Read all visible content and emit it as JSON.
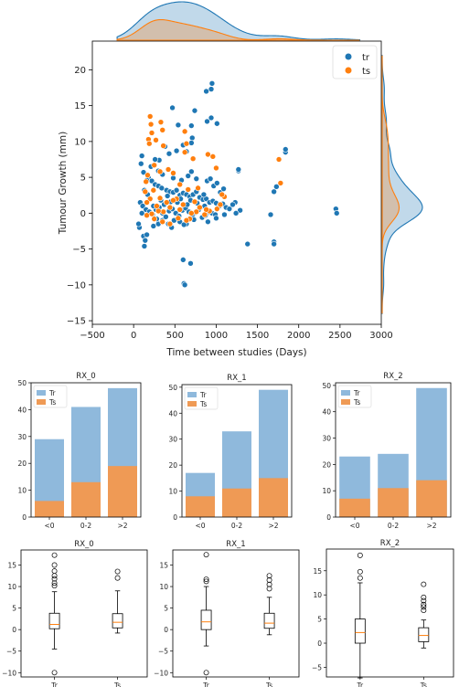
{
  "colors": {
    "tr": "#1f77b4",
    "ts": "#ff7f0e",
    "tr_bar": "#8fb9dc",
    "ts_bar": "#ef9a55",
    "tr_kde": "#b8d0e8",
    "ts_kde": "#d9b28f"
  },
  "chart_data": [
    {
      "type": "scatter",
      "xlabel": "Time between studies (Days)",
      "ylabel": "Tumour Growth (mm)",
      "xlim": [
        -500,
        3000
      ],
      "ylim": [
        -15.5,
        24
      ],
      "xticks": [
        -500,
        0,
        500,
        1000,
        1500,
        2000,
        2500,
        3000
      ],
      "yticks": [
        -15,
        -10,
        -5,
        0,
        5,
        10,
        15,
        20
      ],
      "legend": {
        "position": "top-right"
      },
      "series": [
        {
          "name": "tr",
          "points": [
            [
              120,
              -3.2
            ],
            [
              130,
              -4.6
            ],
            [
              140,
              -3.8
            ],
            [
              160,
              -3.0
            ],
            [
              70,
              -2.0
            ],
            [
              240,
              -1.8
            ],
            [
              300,
              -1.5
            ],
            [
              350,
              -1.0
            ],
            [
              420,
              -1.5
            ],
            [
              460,
              -2.0
            ],
            [
              560,
              -1.2
            ],
            [
              640,
              -1.5
            ],
            [
              600,
              -6.5
            ],
            [
              610,
              -9.8
            ],
            [
              620,
              -10.0
            ],
            [
              690,
              -7.0
            ],
            [
              1380,
              -4.3
            ],
            [
              1660,
              -0.2
            ],
            [
              1700,
              -4.0
            ],
            [
              1700,
              -4.3
            ],
            [
              1700,
              3.0
            ],
            [
              1730,
              3.7
            ],
            [
              1840,
              8.5
            ],
            [
              1840,
              8.9
            ],
            [
              2450,
              0.6
            ],
            [
              2460,
              0.0
            ],
            [
              1270,
              5.9
            ],
            [
              1270,
              6.1
            ],
            [
              1230,
              1.5
            ],
            [
              1290,
              0.4
            ],
            [
              1240,
              0.0
            ],
            [
              1010,
              12.5
            ],
            [
              940,
              17.3
            ],
            [
              950,
              18.1
            ],
            [
              880,
              17.0
            ],
            [
              940,
              13.3
            ],
            [
              890,
              12.8
            ],
            [
              740,
              14.3
            ],
            [
              700,
              12.2
            ],
            [
              710,
              10.5
            ],
            [
              700,
              9.8
            ],
            [
              640,
              8.6
            ],
            [
              600,
              9.5
            ],
            [
              520,
              8.7
            ],
            [
              540,
              12.3
            ],
            [
              470,
              14.7
            ],
            [
              430,
              8.3
            ],
            [
              380,
              9.3
            ],
            [
              310,
              7.4
            ],
            [
              260,
              7.5
            ],
            [
              210,
              6.5
            ],
            [
              100,
              8.0
            ],
            [
              90,
              6.9
            ],
            [
              120,
              5.7
            ],
            [
              180,
              5.0
            ],
            [
              220,
              4.5
            ],
            [
              260,
              4.0
            ],
            [
              300,
              3.8
            ],
            [
              340,
              3.5
            ],
            [
              400,
              3.2
            ],
            [
              440,
              3.0
            ],
            [
              480,
              2.9
            ],
            [
              520,
              3.2
            ],
            [
              560,
              2.5
            ],
            [
              600,
              2.8
            ],
            [
              640,
              2.6
            ],
            [
              680,
              2.3
            ],
            [
              720,
              2.6
            ],
            [
              760,
              3.0
            ],
            [
              800,
              2.2
            ],
            [
              840,
              1.9
            ],
            [
              880,
              2.0
            ],
            [
              920,
              1.5
            ],
            [
              960,
              1.7
            ],
            [
              1000,
              1.4
            ],
            [
              1040,
              1.0
            ],
            [
              1080,
              1.3
            ],
            [
              1120,
              0.8
            ],
            [
              1160,
              0.6
            ],
            [
              80,
              1.5
            ],
            [
              110,
              1.0
            ],
            [
              150,
              0.5
            ],
            [
              190,
              0.2
            ],
            [
              230,
              -0.2
            ],
            [
              270,
              0.5
            ],
            [
              310,
              0.8
            ],
            [
              350,
              0.0
            ],
            [
              390,
              -0.5
            ],
            [
              430,
              0.3
            ],
            [
              470,
              0.6
            ],
            [
              510,
              0.0
            ],
            [
              550,
              -0.4
            ],
            [
              590,
              0.4
            ],
            [
              630,
              0.7
            ],
            [
              670,
              0.2
            ],
            [
              710,
              -0.3
            ],
            [
              750,
              0.1
            ],
            [
              790,
              0.5
            ],
            [
              830,
              -0.6
            ],
            [
              870,
              -0.3
            ],
            [
              910,
              0.2
            ],
            [
              950,
              0.0
            ],
            [
              990,
              -0.2
            ],
            [
              60,
              -1.5
            ],
            [
              100,
              0.0
            ],
            [
              200,
              2.0
            ],
            [
              240,
              1.0
            ],
            [
              280,
              -0.8
            ],
            [
              330,
              1.8
            ],
            [
              370,
              1.2
            ],
            [
              410,
              2.4
            ],
            [
              450,
              1.6
            ],
            [
              490,
              -1.0
            ],
            [
              530,
              1.5
            ],
            [
              570,
              2.0
            ],
            [
              610,
              -1.6
            ],
            [
              650,
              1.2
            ],
            [
              690,
              1.8
            ],
            [
              730,
              -0.9
            ],
            [
              770,
              1.4
            ],
            [
              810,
              0.8
            ],
            [
              850,
              2.6
            ],
            [
              890,
              4.5
            ],
            [
              930,
              4.8
            ],
            [
              970,
              3.8
            ],
            [
              1010,
              4.2
            ],
            [
              1050,
              2.9
            ],
            [
              1090,
              3.4
            ],
            [
              760,
              4.8
            ],
            [
              700,
              5.8
            ],
            [
              660,
              5.2
            ],
            [
              580,
              4.6
            ],
            [
              480,
              4.9
            ],
            [
              350,
              5.4
            ],
            [
              300,
              5.9
            ],
            [
              160,
              4.6
            ],
            [
              130,
              3.2
            ],
            [
              170,
              2.6
            ],
            [
              860,
              1.0
            ],
            [
              900,
              -1.2
            ],
            [
              1000,
              -0.7
            ],
            [
              1100,
              -0.2
            ],
            [
              1200,
              1.2
            ]
          ]
        },
        {
          "name": "ts",
          "points": [
            [
              200,
              13.5
            ],
            [
              210,
              12.4
            ],
            [
              220,
              11.2
            ],
            [
              180,
              10.3
            ],
            [
              190,
              9.7
            ],
            [
              270,
              10.2
            ],
            [
              330,
              12.7
            ],
            [
              350,
              11.6
            ],
            [
              360,
              9.4
            ],
            [
              620,
              11.4
            ],
            [
              640,
              9.7
            ],
            [
              620,
              8.5
            ],
            [
              720,
              7.6
            ],
            [
              900,
              8.2
            ],
            [
              960,
              7.9
            ],
            [
              1000,
              6.3
            ],
            [
              1760,
              7.5
            ],
            [
              1780,
              4.2
            ],
            [
              1100,
              2.3
            ],
            [
              1070,
              2.6
            ],
            [
              1050,
              1.2
            ],
            [
              1010,
              0.6
            ],
            [
              920,
              0.3
            ],
            [
              880,
              0.5
            ],
            [
              860,
              -0.2
            ],
            [
              800,
              0.8
            ],
            [
              760,
              0.2
            ],
            [
              740,
              1.6
            ],
            [
              700,
              0.0
            ],
            [
              680,
              -0.8
            ],
            [
              600,
              1.2
            ],
            [
              560,
              0.5
            ],
            [
              520,
              2.0
            ],
            [
              480,
              1.8
            ],
            [
              440,
              0.8
            ],
            [
              400,
              1.5
            ],
            [
              360,
              0.2
            ],
            [
              320,
              2.1
            ],
            [
              280,
              1.0
            ],
            [
              240,
              3.2
            ],
            [
              200,
              2.0
            ],
            [
              160,
              1.5
            ],
            [
              140,
              3.0
            ],
            [
              150,
              4.4
            ],
            [
              170,
              5.3
            ],
            [
              250,
              6.7
            ],
            [
              320,
              5.8
            ],
            [
              420,
              6.1
            ],
            [
              480,
              5.6
            ],
            [
              560,
              4.0
            ],
            [
              660,
              3.3
            ],
            [
              780,
              3.5
            ],
            [
              250,
              -0.8
            ],
            [
              350,
              -1.2
            ],
            [
              160,
              -0.3
            ],
            [
              440,
              -1.5
            ],
            [
              540,
              -0.7
            ],
            [
              300,
              0.3
            ],
            [
              220,
              -0.1
            ],
            [
              640,
              -1.0
            ]
          ]
        }
      ],
      "top_kde_axis": "x",
      "right_kde_axis": "y"
    },
    {
      "type": "bar",
      "title": "RX_0",
      "categories": [
        "<0",
        "0-2",
        ">2"
      ],
      "stacked": false,
      "ylim": [
        0,
        50
      ],
      "yticks": [
        0,
        10,
        20,
        30,
        40,
        50
      ],
      "legend": {
        "position": "top-left"
      },
      "series": [
        {
          "name": "Tr",
          "values": [
            29,
            41,
            48
          ]
        },
        {
          "name": "Ts",
          "values": [
            6,
            13,
            19
          ]
        }
      ]
    },
    {
      "type": "bar",
      "title": "RX_1",
      "categories": [
        "<0",
        "0-2",
        ">2"
      ],
      "ylim": [
        0,
        51
      ],
      "yticks": [
        0,
        10,
        20,
        30,
        40,
        50
      ],
      "legend": {
        "position": "top-left"
      },
      "series": [
        {
          "name": "Tr",
          "values": [
            17,
            33,
            49
          ]
        },
        {
          "name": "Ts",
          "values": [
            8,
            11,
            15
          ]
        }
      ]
    },
    {
      "type": "bar",
      "title": "RX_2",
      "categories": [
        "<0",
        "0-2",
        ">2"
      ],
      "ylim": [
        0,
        51
      ],
      "yticks": [
        0,
        10,
        20,
        30,
        40,
        50
      ],
      "legend": {
        "position": "top-left"
      },
      "series": [
        {
          "name": "Tr",
          "values": [
            23,
            24,
            49
          ]
        },
        {
          "name": "Ts",
          "values": [
            7,
            11,
            14
          ]
        }
      ]
    },
    {
      "type": "box",
      "title": "RX_0",
      "categories": [
        "Tr",
        "Ts"
      ],
      "ylim": [
        -11,
        18.5
      ],
      "yticks": [
        -10,
        -5,
        0,
        5,
        10,
        15
      ],
      "boxes": [
        {
          "whislo": -4.5,
          "q1": 0.2,
          "med": 1.2,
          "q3": 3.8,
          "whishi": 8.8,
          "fliers": [
            10.2,
            10.8,
            11.8,
            12.5,
            13.6,
            15.0,
            17.3,
            -10.0
          ]
        },
        {
          "whislo": -0.8,
          "q1": 0.4,
          "med": 1.7,
          "q3": 3.7,
          "whishi": 9.0,
          "fliers": [
            12.0,
            13.5
          ]
        }
      ]
    },
    {
      "type": "box",
      "title": "RX_1",
      "categories": [
        "Tr",
        "Ts"
      ],
      "ylim": [
        -11,
        18.5
      ],
      "yticks": [
        -10,
        -5,
        0,
        5,
        10,
        15
      ],
      "boxes": [
        {
          "whislo": -3.8,
          "q1": 0.0,
          "med": 1.8,
          "q3": 4.5,
          "whishi": 10.0,
          "fliers": [
            11.2,
            11.7,
            17.4,
            -10.0
          ]
        },
        {
          "whislo": -1.2,
          "q1": 0.3,
          "med": 1.5,
          "q3": 3.8,
          "whishi": 7.5,
          "fliers": [
            9.5,
            10.5,
            11.5,
            12.5
          ]
        }
      ]
    },
    {
      "type": "box",
      "title": "RX_2",
      "categories": [
        "Tr",
        "Ts"
      ],
      "ylim": [
        -7,
        19.5
      ],
      "yticks": [
        -5,
        0,
        5,
        10,
        15
      ],
      "boxes": [
        {
          "whislo": -7.2,
          "q1": 0.0,
          "med": 2.2,
          "q3": 5.0,
          "whishi": 12.5,
          "fliers": [
            13.5,
            14.8,
            18.2
          ]
        },
        {
          "whislo": -1.0,
          "q1": 0.3,
          "med": 1.6,
          "q3": 3.2,
          "whishi": 4.8,
          "fliers": [
            6.8,
            7.5,
            8.0,
            8.8,
            9.5,
            12.2
          ]
        }
      ]
    }
  ]
}
